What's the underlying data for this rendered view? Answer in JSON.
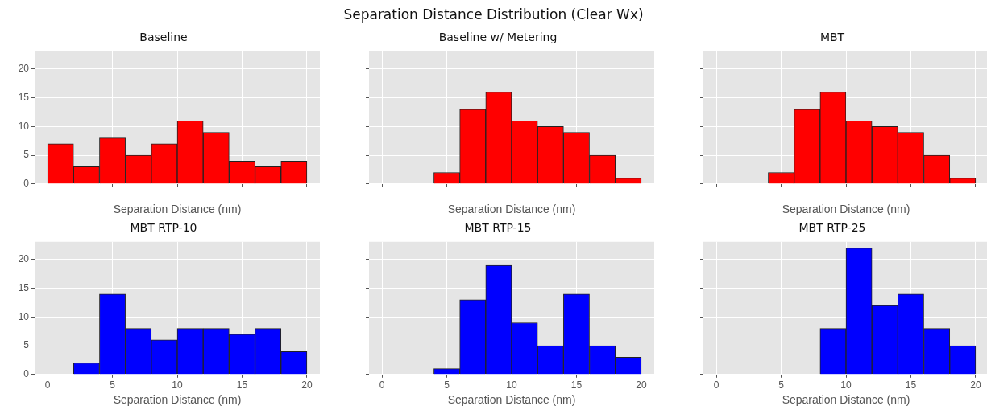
{
  "chart_data": [
    {
      "type": "histogram",
      "title": "Baseline",
      "xlabel": "Separation Distance (nm)",
      "annotations": [
        "Separation Distance Distribution (Clear Wx)"
      ],
      "bins": [
        0,
        2,
        4,
        6,
        8,
        10,
        12,
        14,
        16,
        18,
        20
      ],
      "values": [
        7,
        3,
        8,
        5,
        7,
        11,
        9,
        4,
        3,
        4
      ],
      "color": "#ff0000",
      "xlim": [
        -1,
        21
      ],
      "ylim": [
        0,
        23.1
      ],
      "xticks": [
        0,
        5,
        10,
        15,
        20
      ],
      "yticks": [
        0,
        5,
        10,
        15,
        20
      ],
      "grid": true,
      "tick_labels": "y"
    },
    {
      "type": "histogram",
      "title": "Baseline w/ Metering",
      "xlabel": "Separation Distance (nm)",
      "bins": [
        4,
        6,
        8,
        10,
        12,
        14,
        16,
        18,
        20
      ],
      "values": [
        2,
        13,
        16,
        11,
        10,
        9,
        5,
        1
      ],
      "color": "#ff0000",
      "xlim": [
        -1,
        21
      ],
      "ylim": [
        0,
        23.1
      ],
      "xticks": [
        0,
        5,
        10,
        15,
        20
      ],
      "yticks": [
        0,
        5,
        10,
        15,
        20
      ],
      "grid": true,
      "tick_labels": false
    },
    {
      "type": "histogram",
      "title": "MBT",
      "xlabel": "Separation Distance (nm)",
      "bins": [
        4,
        6,
        8,
        10,
        12,
        14,
        16,
        18,
        20
      ],
      "values": [
        2,
        13,
        16,
        11,
        10,
        9,
        5,
        1
      ],
      "color": "#ff0000",
      "xlim": [
        -1,
        21
      ],
      "ylim": [
        0,
        23.1
      ],
      "xticks": [
        0,
        5,
        10,
        15,
        20
      ],
      "yticks": [
        0,
        5,
        10,
        15,
        20
      ],
      "grid": true,
      "tick_labels": false
    },
    {
      "type": "histogram",
      "title": "MBT RTP-10",
      "xlabel": "Separation Distance (nm)",
      "bins": [
        2,
        4,
        6,
        8,
        10,
        12,
        14,
        16,
        18,
        20
      ],
      "values": [
        2,
        14,
        8,
        6,
        8,
        8,
        7,
        8,
        4
      ],
      "color": "#0000ff",
      "xlim": [
        -1,
        21
      ],
      "ylim": [
        0,
        23.1
      ],
      "xticks": [
        0,
        5,
        10,
        15,
        20
      ],
      "yticks": [
        0,
        5,
        10,
        15,
        20
      ],
      "grid": true
    },
    {
      "type": "histogram",
      "title": "MBT RTP-15",
      "xlabel": "Separation Distance (nm)",
      "bins": [
        4,
        6,
        8,
        10,
        12,
        14,
        16,
        18,
        20
      ],
      "values": [
        1,
        13,
        19,
        9,
        5,
        14,
        5,
        3
      ],
      "color": "#0000ff",
      "xlim": [
        -1,
        21
      ],
      "ylim": [
        0,
        23.1
      ],
      "xticks": [
        0,
        5,
        10,
        15,
        20
      ],
      "yticks": [
        0,
        5,
        10,
        15,
        20
      ],
      "grid": true,
      "tick_labels": "x"
    },
    {
      "type": "histogram",
      "title": "MBT RTP-25",
      "xlabel": "Separation Distance (nm)",
      "bins": [
        8,
        10,
        12,
        14,
        16,
        18,
        20
      ],
      "values": [
        8,
        22,
        12,
        14,
        8,
        5
      ],
      "color": "#0000ff",
      "xlim": [
        -1,
        21
      ],
      "ylim": [
        0,
        23.1
      ],
      "xticks": [
        0,
        5,
        10,
        15,
        20
      ],
      "yticks": [
        0,
        5,
        10,
        15,
        20
      ],
      "grid": true,
      "tick_labels": "x"
    }
  ]
}
